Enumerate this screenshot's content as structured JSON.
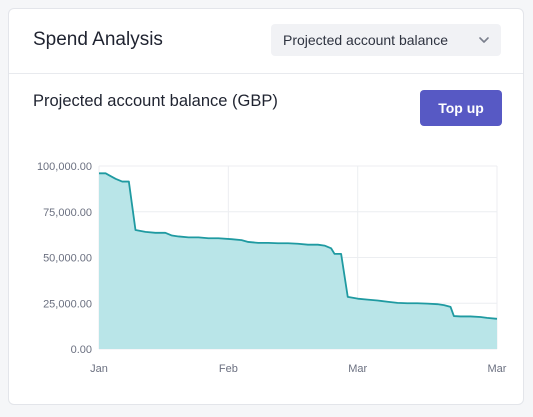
{
  "header": {
    "title": "Spend Analysis",
    "dropdown": {
      "selected": "Projected account balance",
      "icon": "chevron-down-icon"
    }
  },
  "chart_section": {
    "title": "Projected account balance (GBP)",
    "topup_label": "Top up"
  },
  "colors": {
    "accent": "#5759c4",
    "line": "#1f9aa1",
    "fill": "#b9e5e8"
  },
  "chart_data": {
    "type": "area",
    "title": "Projected account balance (GBP)",
    "xlabel": "",
    "ylabel": "",
    "ylim": [
      0,
      100000
    ],
    "yticks": [
      0,
      25000,
      50000,
      75000,
      100000
    ],
    "ytick_labels": [
      "0.00",
      "25,000.00",
      "50,000.00",
      "75,000.00",
      "100,000.00"
    ],
    "xtick_labels": [
      "Jan",
      "Feb",
      "Mar",
      "Mar"
    ],
    "grid": true,
    "series": [
      {
        "values": [
          [
            0,
            96000
          ],
          [
            2,
            96000
          ],
          [
            3,
            95000
          ],
          [
            5,
            93000
          ],
          [
            7,
            91500
          ],
          [
            9,
            91500
          ],
          [
            11,
            65000
          ],
          [
            14,
            64000
          ],
          [
            17,
            63500
          ],
          [
            20,
            63500
          ],
          [
            22,
            62000
          ],
          [
            24,
            61500
          ],
          [
            27,
            61000
          ],
          [
            30,
            61000
          ],
          [
            33,
            60500
          ],
          [
            36,
            60500
          ],
          [
            40,
            60000
          ],
          [
            43,
            59500
          ],
          [
            45,
            58500
          ],
          [
            48,
            58000
          ],
          [
            51,
            58000
          ],
          [
            54,
            57800
          ],
          [
            57,
            57800
          ],
          [
            60,
            57500
          ],
          [
            63,
            57000
          ],
          [
            66,
            57000
          ],
          [
            68,
            56500
          ],
          [
            70,
            55000
          ],
          [
            71,
            52000
          ],
          [
            73,
            52000
          ],
          [
            75,
            28500
          ],
          [
            78,
            27500
          ],
          [
            81,
            27000
          ],
          [
            84,
            26500
          ],
          [
            87,
            25800
          ],
          [
            90,
            25200
          ],
          [
            93,
            25000
          ],
          [
            96,
            25000
          ],
          [
            99,
            24800
          ],
          [
            102,
            24500
          ],
          [
            104,
            24000
          ],
          [
            106,
            23000
          ],
          [
            107,
            18000
          ],
          [
            109,
            17800
          ],
          [
            112,
            17800
          ],
          [
            115,
            17500
          ],
          [
            117,
            17000
          ],
          [
            120,
            16500
          ]
        ]
      }
    ]
  }
}
